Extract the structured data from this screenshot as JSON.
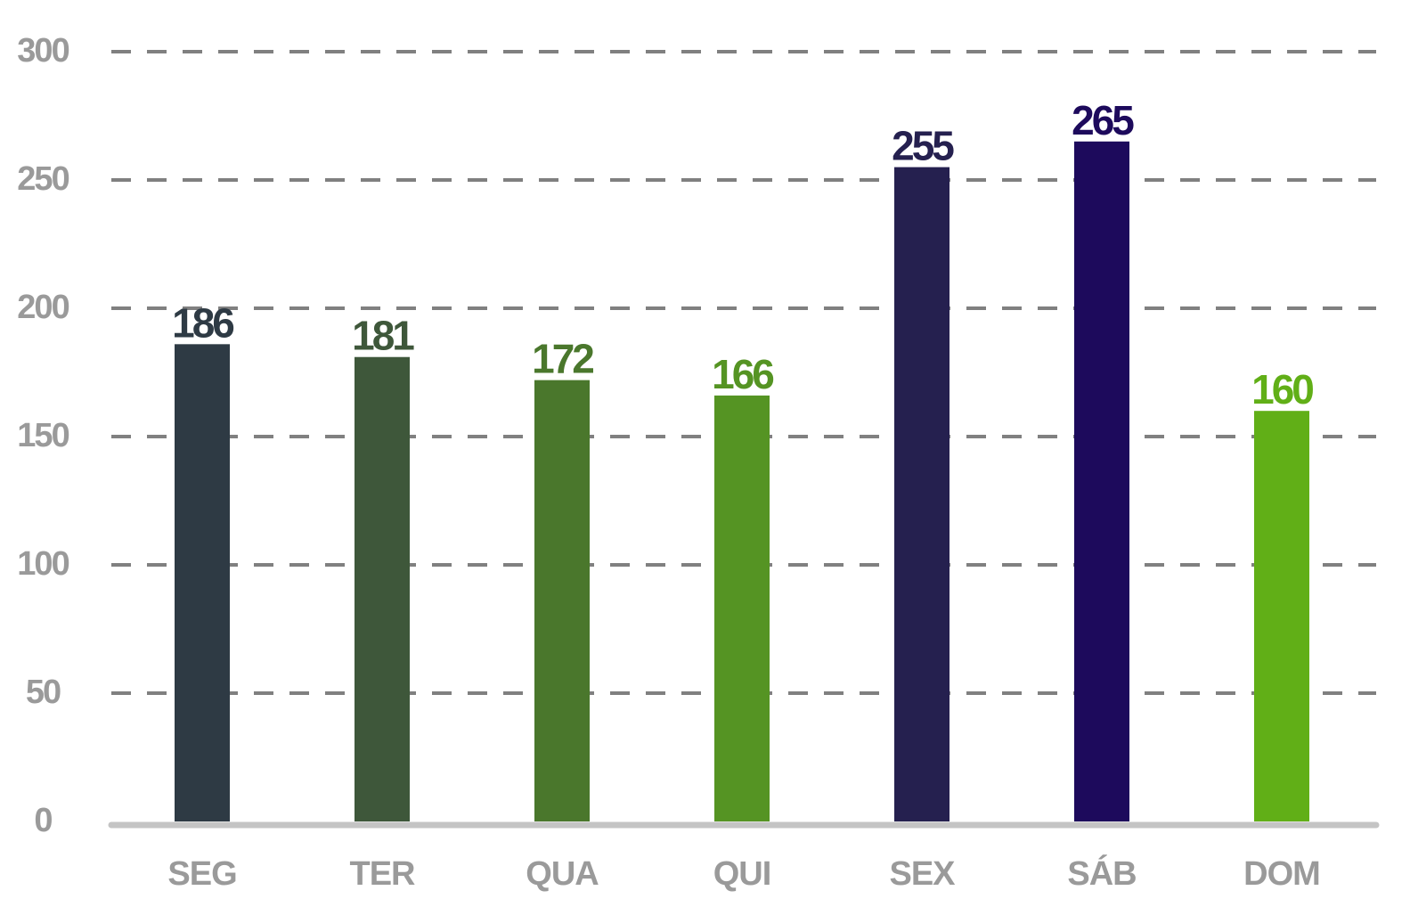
{
  "chart_data": {
    "type": "bar",
    "categories": [
      "SEG",
      "TER",
      "QUA",
      "QUI",
      "SEX",
      "SÁB",
      "DOM"
    ],
    "values": [
      186,
      181,
      172,
      166,
      255,
      265,
      160
    ],
    "bar_colors": [
      "#2e3a44",
      "#3e573a",
      "#4a772c",
      "#559423",
      "#25204f",
      "#1d0a5c",
      "#61af17"
    ],
    "title": "",
    "xlabel": "",
    "ylabel": "",
    "ylim": [
      0,
      300
    ],
    "yticks": [
      0,
      50,
      100,
      150,
      200,
      250,
      300
    ],
    "ytick_labels": [
      "0",
      "50",
      "100",
      "150",
      "200",
      "250",
      "300"
    ],
    "grid": true,
    "grid_style": "dashed-horizontal",
    "legend": "none",
    "data_labels": true
  }
}
